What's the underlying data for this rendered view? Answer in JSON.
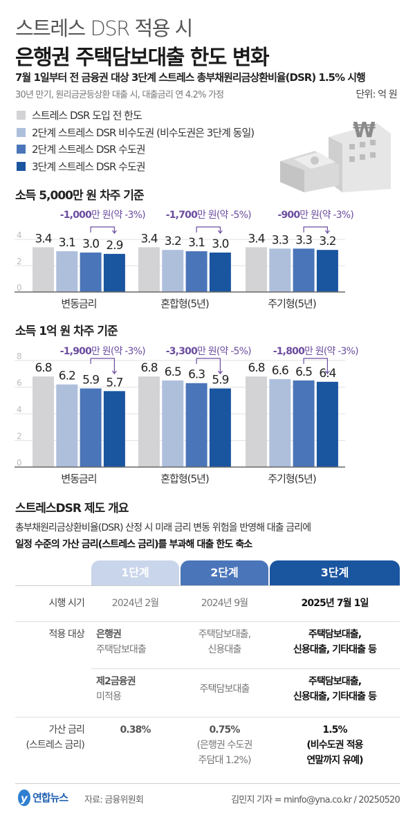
{
  "header": {
    "kicker": "스트레스 DSR 적용 시",
    "title": "은행권 주택담보대출 한도 변화",
    "subtitle": "7월 1일부터 전 금융권 대상 3단계 스트레스 총부채원리금상환비율(DSR) 1.5% 시행",
    "note": "30년 만기, 원리금균등상환 대출 시, 대출금리 연 4.2% 가정",
    "unit": "단위: 억 원"
  },
  "legend": [
    {
      "label": "스트레스 DSR 도입 전 한도",
      "color": "#d3d3d5"
    },
    {
      "label": "2단계 스트레스 DSR 비수도권 (비수도권은 3단계 동일)",
      "color": "#aebfdc"
    },
    {
      "label": "2단계 스트레스 DSR 수도권",
      "color": "#4a75b9"
    },
    {
      "label": "3단계 스트레스 DSR 수도권",
      "color": "#1a55a0"
    }
  ],
  "illustration": {
    "icon": "bank-building-with-won-sign-and-money-icon"
  },
  "chart_data": [
    {
      "type": "bar",
      "title": "소득 5,000만 원 차주 기준",
      "categories": [
        "변동금리",
        "혼합형(5년)",
        "주기형(5년)"
      ],
      "ylim": [
        0,
        4
      ],
      "yticks": [
        0,
        2,
        4
      ],
      "grid": true,
      "series": [
        {
          "name": "스트레스 DSR 도입 전 한도",
          "values": [
            3.4,
            3.4,
            3.4
          ]
        },
        {
          "name": "2단계 스트레스 DSR 비수도권",
          "values": [
            3.1,
            3.2,
            3.3
          ]
        },
        {
          "name": "2단계 스트레스 DSR 수도권",
          "values": [
            3.0,
            3.1,
            3.3
          ]
        },
        {
          "name": "3단계 스트레스 DSR 수도권",
          "values": [
            2.9,
            3.0,
            3.2
          ]
        }
      ],
      "value_labels": [
        [
          "3.4",
          "3.1",
          "3.0",
          "2.9"
        ],
        [
          "3.4",
          "3.2",
          "3.1",
          "3.0"
        ],
        [
          "3.4",
          "3.3",
          "3.3",
          "3.2"
        ]
      ],
      "annotations": [
        {
          "bold": "-1,000",
          "rest": "만 원(약 -3%)"
        },
        {
          "bold": "-1,700",
          "rest": "만 원(약 -5%)"
        },
        {
          "bold": "-900",
          "rest": "만 원(약 -3%)"
        }
      ]
    },
    {
      "type": "bar",
      "title": "소득 1억 원 차주 기준",
      "categories": [
        "변동금리",
        "혼합형(5년)",
        "주기형(5년)"
      ],
      "ylim": [
        0,
        8
      ],
      "yticks": [
        0,
        2,
        4,
        6,
        8
      ],
      "grid": true,
      "series": [
        {
          "name": "스트레스 DSR 도입 전 한도",
          "values": [
            6.8,
            6.8,
            6.8
          ]
        },
        {
          "name": "2단계 스트레스 DSR 비수도권",
          "values": [
            6.2,
            6.5,
            6.6
          ]
        },
        {
          "name": "2단계 스트레스 DSR 수도권",
          "values": [
            5.9,
            6.3,
            6.5
          ]
        },
        {
          "name": "3단계 스트레스 DSR 수도권",
          "values": [
            5.7,
            5.9,
            6.4
          ]
        }
      ],
      "value_labels": [
        [
          "6.8",
          "6.2",
          "5.9",
          "5.7"
        ],
        [
          "6.8",
          "6.5",
          "6.3",
          "5.9"
        ],
        [
          "6.8",
          "6.6",
          "6.5",
          "6.4"
        ]
      ],
      "annotations": [
        {
          "bold": "-1,900",
          "rest": "만 원(약 -3%)"
        },
        {
          "bold": "-3,300",
          "rest": "만 원(약 -5%)"
        },
        {
          "bold": "-1,800",
          "rest": "만 원(약 -3%)"
        }
      ]
    }
  ],
  "colors": {
    "annotation": "#6b4c9f",
    "axis": "#666",
    "grid": "#e2e2e2"
  },
  "overview": {
    "title": "스트레스DSR 제도 개요",
    "desc1": "총부채원리금상환비율(DSR) 산정 시 미래 금리 변동 위험을 반영해 대출 금리에",
    "desc2": "일정 수준의 가산 금리(스트레스 금리)를 부과해 대출 한도 축소",
    "stages": [
      {
        "label": "1단계",
        "color": "#c9d5ea"
      },
      {
        "label": "2단계",
        "color": "#4a75b9"
      },
      {
        "label": "3단계",
        "color": "#1a55a0"
      }
    ],
    "rows": {
      "date_label": "시행 시기",
      "dates": [
        "2024년 2월",
        "2024년 9월",
        "2025년 7월 1일"
      ],
      "target_label": "적용 대상",
      "bank": {
        "s1_title": "은행권",
        "s1_text": "주택담보대출",
        "s2": [
          "주택담보대출,",
          "신용대출"
        ],
        "s3": [
          "주택담보대출,",
          "신용대출, 기타대출 등"
        ]
      },
      "second": {
        "s1_title": "제2금융권",
        "s1_text": "미적용",
        "s2": "주택담보대출",
        "s3": [
          "주택담보대출,",
          "신용대출, 기타대출 등"
        ]
      },
      "rate_label": [
        "가산 금리",
        "(스트레스 금리)"
      ],
      "rates": {
        "s1": "0.38%",
        "s2": "0.75%",
        "s2_note": [
          "(은행권 수도권",
          "주담대 1.2%)"
        ],
        "s3": "1.5%",
        "s3_note": [
          "(비수도권 적용",
          "연말까지 유예)"
        ]
      }
    }
  },
  "footer": {
    "brand": "연합뉴스",
    "source": "자료: 금융위원회",
    "credit": "김민지 기자 = minfo@yna.co.kr / 20250520"
  }
}
